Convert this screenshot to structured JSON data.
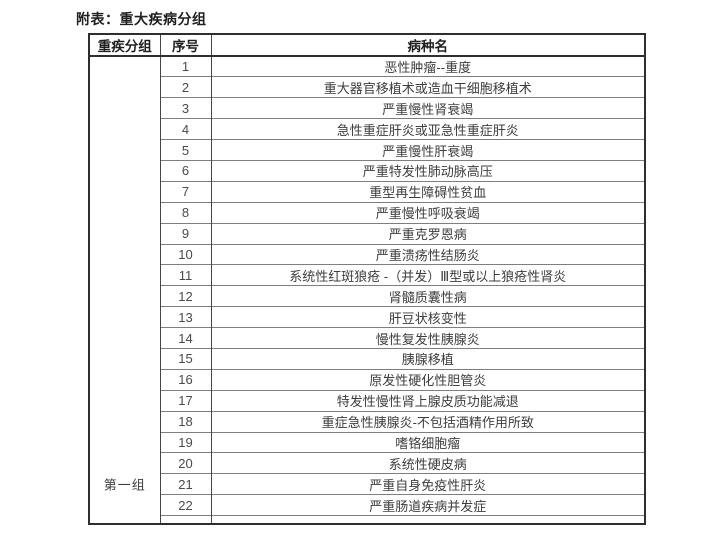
{
  "page": {
    "title": "附表：重大疾病分组"
  },
  "table": {
    "headers": {
      "group": "重疾分组",
      "index": "序号",
      "disease": "病种名"
    },
    "group_label": "第一组",
    "rows": [
      {
        "no": "1",
        "name": "恶性肿瘤--重度"
      },
      {
        "no": "2",
        "name": "重大器官移植术或造血干细胞移植术"
      },
      {
        "no": "3",
        "name": "严重慢性肾衰竭"
      },
      {
        "no": "4",
        "name": "急性重症肝炎或亚急性重症肝炎"
      },
      {
        "no": "5",
        "name": "严重慢性肝衰竭"
      },
      {
        "no": "6",
        "name": "严重特发性肺动脉高压"
      },
      {
        "no": "7",
        "name": "重型再生障碍性贫血"
      },
      {
        "no": "8",
        "name": "严重慢性呼吸衰竭"
      },
      {
        "no": "9",
        "name": "严重克罗恩病"
      },
      {
        "no": "10",
        "name": "严重溃疡性结肠炎"
      },
      {
        "no": "11",
        "name": "系统性红斑狼疮 -（并发）Ⅲ型或以上狼疮性肾炎"
      },
      {
        "no": "12",
        "name": "肾髓质囊性病"
      },
      {
        "no": "13",
        "name": "肝豆状核变性"
      },
      {
        "no": "14",
        "name": "慢性复发性胰腺炎"
      },
      {
        "no": "15",
        "name": "胰腺移植"
      },
      {
        "no": "16",
        "name": "原发性硬化性胆管炎"
      },
      {
        "no": "17",
        "name": "特发性慢性肾上腺皮质功能减退"
      },
      {
        "no": "18",
        "name": "重症急性胰腺炎-不包括酒精作用所致"
      },
      {
        "no": "19",
        "name": "嗜铬细胞瘤"
      },
      {
        "no": "20",
        "name": "系统性硬皮病"
      },
      {
        "no": "21",
        "name": "严重自身免疫性肝炎"
      },
      {
        "no": "22",
        "name": "严重肠道疾病并发症"
      }
    ]
  },
  "colors": {
    "border_dark": "#2e2e2e",
    "border_mid": "#454545",
    "border_light": "#7e7e7e",
    "text_body": "#3d3d3d",
    "text_header": "#1f1f1f",
    "page_bg": "#ffffff"
  }
}
